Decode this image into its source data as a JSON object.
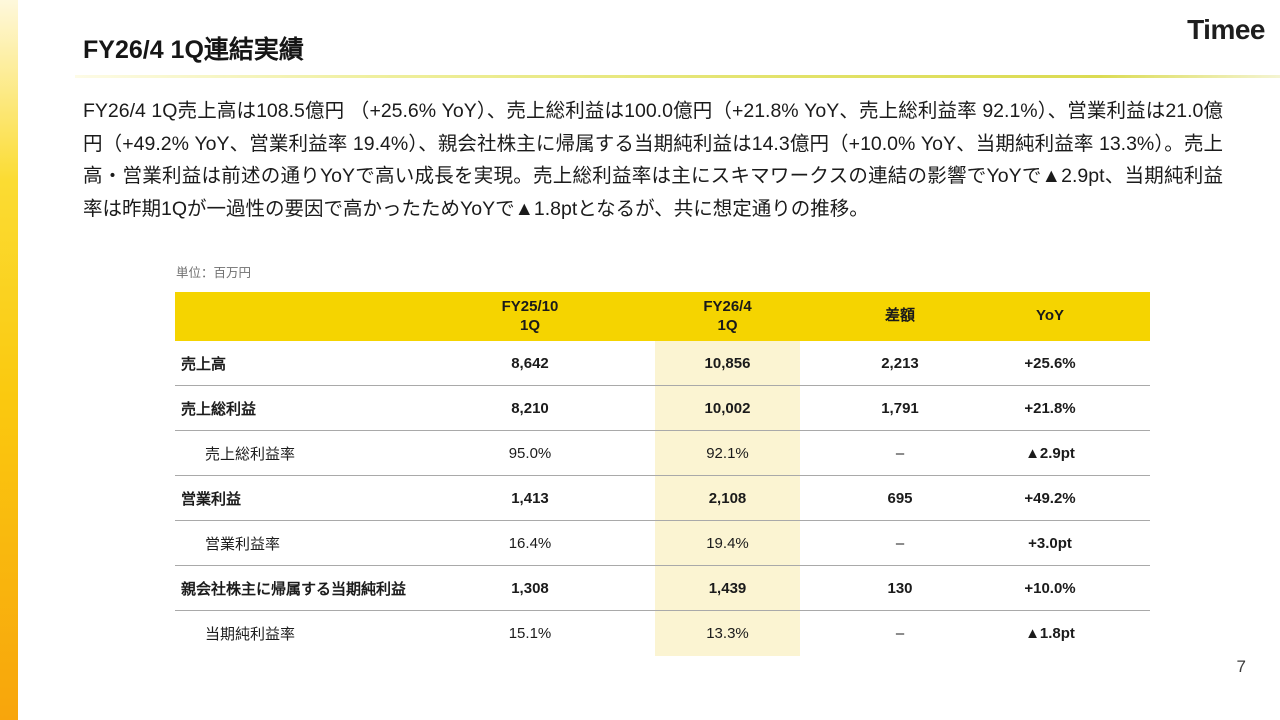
{
  "slide": {
    "logo_text": "Timee",
    "title": "FY26/4 1Q連結実績",
    "body": "FY26/4 1Q売上高は108.5億円 （+25.6% YoY）、売上総利益は100.0億円（+21.8% YoY、売上総利益率 92.1%）、営業利益は21.0億円（+49.2% YoY、営業利益率 19.4%）、親会社株主に帰属する当期純利益は14.3億円（+10.0% YoY、当期純利益率 13.3%）。売上高・営業利益は前述の通りYoYで高い成長を実現。売上総利益率は主にスキマワークスの連結の影響でYoYで▲2.9pt、当期純利益率は昨期1Qが一過性の要因で高かったためYoYで▲1.8ptとなるが、共に想定通りの推移。",
    "page_number": "7"
  },
  "table": {
    "unit_label": "単位：百万円",
    "header": {
      "prev_line1": "FY25/10",
      "prev_line2": "1Q",
      "curr_line1": "FY26/4",
      "curr_line2": "1Q",
      "diff": "差額",
      "yoy": "YoY"
    },
    "rows": [
      {
        "label": "売上高",
        "prev": "8,642",
        "curr": "10,856",
        "diff": "2,213",
        "yoy": "+25.6%"
      },
      {
        "label": "売上総利益",
        "prev": "8,210",
        "curr": "10,002",
        "diff": "1,791",
        "yoy": "+21.8%"
      },
      {
        "label": "売上総利益率",
        "prev": "95.0%",
        "curr": "92.1%",
        "diff": "–",
        "yoy": "▲2.9pt"
      },
      {
        "label": "営業利益",
        "prev": "1,413",
        "curr": "2,108",
        "diff": "695",
        "yoy": "+49.2%"
      },
      {
        "label": "営業利益率",
        "prev": "16.4%",
        "curr": "19.4%",
        "diff": "–",
        "yoy": "+3.0pt"
      },
      {
        "label": "親会社株主に帰属する当期純利益",
        "prev": "1,308",
        "curr": "1,439",
        "diff": "130",
        "yoy": "+10.0%"
      },
      {
        "label": "当期純利益率",
        "prev": "15.1%",
        "curr": "13.3%",
        "diff": "–",
        "yoy": "▲1.8pt"
      }
    ]
  },
  "colors": {
    "header_yellow": "#F5D400",
    "column_highlight": "#FBF4D2",
    "accent_bar_top": "#FEF8DC",
    "accent_bar_bottom": "#F8A50C",
    "underline_yellow_green": "#E2E269"
  }
}
